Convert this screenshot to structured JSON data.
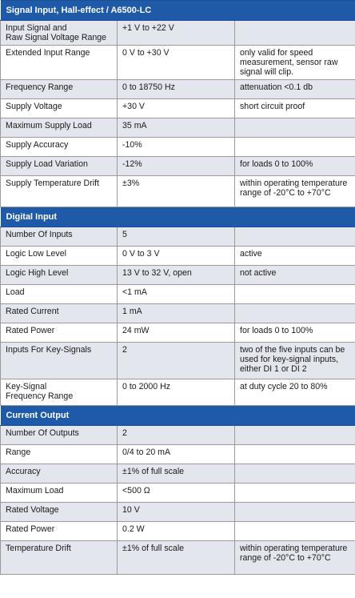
{
  "sections": [
    {
      "title": "Signal Input, Hall-effect / A6500-LC",
      "rows": [
        {
          "param": "Input Signal and\nRaw Signal Voltage Range",
          "value": "+1 V to +22 V",
          "note": ""
        },
        {
          "param": "Extended Input Range",
          "value": "0 V to +30 V",
          "note": "only valid for speed measurement, sensor raw signal will clip."
        },
        {
          "param": "Frequency Range",
          "value": "0 to 18750 Hz",
          "note": "attenuation <0.1 db"
        },
        {
          "param": "Supply Voltage",
          "value": "+30 V",
          "note": "short circuit proof"
        },
        {
          "param": "Maximum Supply Load",
          "value": "35 mA",
          "note": ""
        },
        {
          "param": "Supply Accuracy",
          "value": "-10%",
          "note": ""
        },
        {
          "param": "Supply Load Variation",
          "value": "-12%",
          "note": "for loads 0 to 100%"
        },
        {
          "param": "Supply Temperature Drift",
          "value": "±3%",
          "note": "within operating temperature range of -20°C to +70°C"
        }
      ]
    },
    {
      "title": "Digital Input",
      "rows": [
        {
          "param": "Number Of Inputs",
          "value": "5",
          "note": ""
        },
        {
          "param": "Logic Low Level",
          "value": "0 V to 3 V",
          "note": "active"
        },
        {
          "param": "Logic High Level",
          "value": "13 V to 32 V, open",
          "note": "not active"
        },
        {
          "param": "Load",
          "value": "<1 mA",
          "note": ""
        },
        {
          "param": "Rated Current",
          "value": "1 mA",
          "note": ""
        },
        {
          "param": "Rated Power",
          "value": "24 mW",
          "note": "for loads 0 to 100%"
        },
        {
          "param": "Inputs For Key-Signals",
          "value": "2",
          "note": "two of the five inputs can be used for key-signal inputs, either DI 1 or DI 2"
        },
        {
          "param": "Key-Signal\nFrequency Range",
          "value": "0 to 2000 Hz",
          "note": "at duty cycle 20 to 80%"
        }
      ]
    },
    {
      "title": "Current Output",
      "rows": [
        {
          "param": "Number Of Outputs",
          "value": "2",
          "note": ""
        },
        {
          "param": "Range",
          "value": "0/4 to 20 mA",
          "note": ""
        },
        {
          "param": "Accuracy",
          "value": "±1% of full scale",
          "note": ""
        },
        {
          "param": "Maximum Load",
          "value": "<500 Ω",
          "note": ""
        },
        {
          "param": "Rated Voltage",
          "value": "10 V",
          "note": ""
        },
        {
          "param": "Rated Power",
          "value": "0.2 W",
          "note": ""
        },
        {
          "param": "Temperature Drift",
          "value": "±1% of full scale",
          "note": "within operating temperature range of -20°C to +70°C"
        }
      ]
    }
  ]
}
